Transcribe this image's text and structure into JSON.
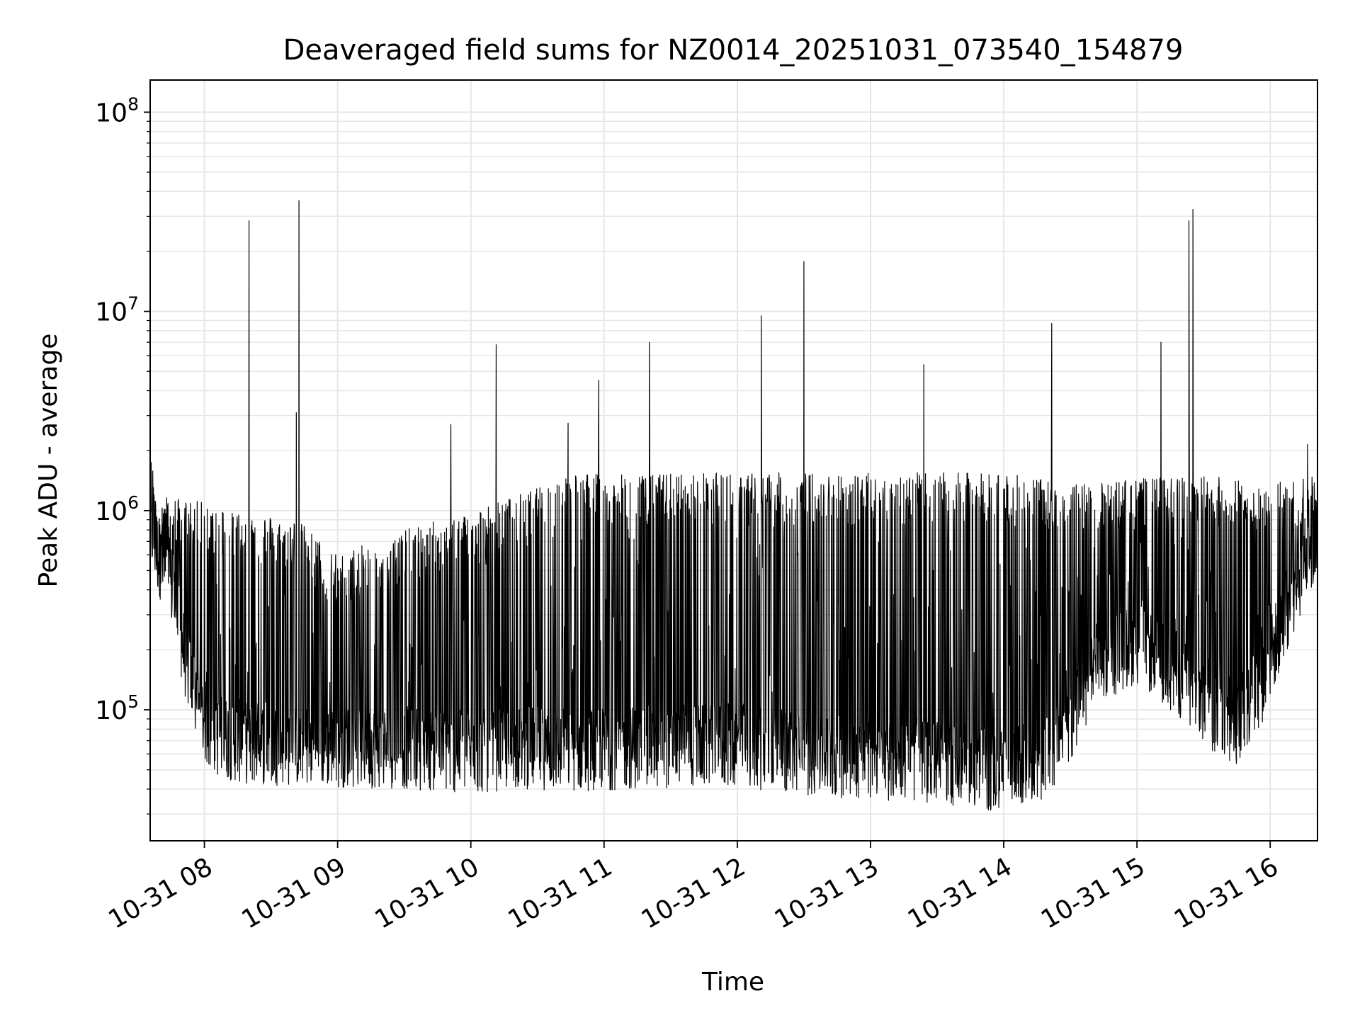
{
  "chart_data": {
    "type": "line",
    "title": "Deaveraged field sums for NZ0014_20251031_073540_154879",
    "xlabel": "Time",
    "ylabel": "Peak ADU - average",
    "yscale": "log",
    "ylim": [
      22000,
      145000000
    ],
    "xlim_hours": [
      7.593,
      16.355
    ],
    "grid": true,
    "line_color": "#000000",
    "grid_color": "#e6e6e6",
    "x_ticks": [
      {
        "hour": 8,
        "label": "10-31 08"
      },
      {
        "hour": 9,
        "label": "10-31 09"
      },
      {
        "hour": 10,
        "label": "10-31 10"
      },
      {
        "hour": 11,
        "label": "10-31 11"
      },
      {
        "hour": 12,
        "label": "10-31 12"
      },
      {
        "hour": 13,
        "label": "10-31 13"
      },
      {
        "hour": 14,
        "label": "10-31 14"
      },
      {
        "hour": 15,
        "label": "10-31 15"
      },
      {
        "hour": 16,
        "label": "10-31 16"
      }
    ],
    "y_ticks": [
      {
        "value": 100000,
        "base": "10",
        "exp": "5"
      },
      {
        "value": 1000000,
        "base": "10",
        "exp": "6"
      },
      {
        "value": 10000000,
        "base": "10",
        "exp": "7"
      },
      {
        "value": 100000000,
        "base": "10",
        "exp": "8"
      }
    ],
    "series": [
      {
        "name": "Peak ADU - average",
        "baseline_profile": [
          [
            7.593,
            900000
          ],
          [
            7.65,
            650000
          ],
          [
            7.75,
            450000
          ],
          [
            7.85,
            200000
          ],
          [
            7.95,
            110000
          ],
          [
            8.05,
            80000
          ],
          [
            8.3,
            72000
          ],
          [
            8.8,
            70000
          ],
          [
            9.5,
            68000
          ],
          [
            10.0,
            64000
          ],
          [
            10.4,
            68000
          ],
          [
            10.8,
            66000
          ],
          [
            11.2,
            68000
          ],
          [
            12.0,
            70000
          ],
          [
            12.6,
            62000
          ],
          [
            13.0,
            60000
          ],
          [
            13.5,
            58000
          ],
          [
            13.9,
            52000
          ],
          [
            14.3,
            58000
          ],
          [
            14.5,
            90000
          ],
          [
            14.7,
            180000
          ],
          [
            15.0,
            230000
          ],
          [
            15.3,
            160000
          ],
          [
            15.5,
            110000
          ],
          [
            15.75,
            90000
          ],
          [
            15.95,
            150000
          ],
          [
            16.1,
            300000
          ],
          [
            16.25,
            550000
          ],
          [
            16.355,
            750000
          ]
        ],
        "upper_envelope": [
          [
            7.593,
            1900000
          ],
          [
            7.7,
            1200000
          ],
          [
            8.0,
            1100000
          ],
          [
            8.3,
            1000000
          ],
          [
            8.7,
            900000
          ],
          [
            9.0,
            600000
          ],
          [
            9.5,
            800000
          ],
          [
            10.0,
            1000000
          ],
          [
            10.5,
            1300000
          ],
          [
            10.8,
            1600000
          ],
          [
            11.0,
            1500000
          ],
          [
            11.5,
            1550000
          ],
          [
            12.0,
            1550000
          ],
          [
            13.0,
            1550000
          ],
          [
            14.0,
            1550000
          ],
          [
            14.5,
            1350000
          ],
          [
            15.0,
            1450000
          ],
          [
            15.5,
            1500000
          ],
          [
            16.0,
            1400000
          ],
          [
            16.355,
            1500000
          ]
        ],
        "spikes": [
          {
            "hour": 8.335,
            "value": 28500000
          },
          {
            "hour": 8.71,
            "value": 36000000
          },
          {
            "hour": 8.69,
            "value": 3100000
          },
          {
            "hour": 9.85,
            "value": 2700000
          },
          {
            "hour": 10.19,
            "value": 6800000
          },
          {
            "hour": 10.73,
            "value": 2750000
          },
          {
            "hour": 10.96,
            "value": 4500000
          },
          {
            "hour": 11.34,
            "value": 7000000
          },
          {
            "hour": 12.18,
            "value": 9500000
          },
          {
            "hour": 12.5,
            "value": 17800000
          },
          {
            "hour": 13.4,
            "value": 5400000
          },
          {
            "hour": 14.36,
            "value": 8700000
          },
          {
            "hour": 15.18,
            "value": 7000000
          },
          {
            "hour": 15.39,
            "value": 28500000
          },
          {
            "hour": 15.42,
            "value": 32500000
          },
          {
            "hour": 16.28,
            "value": 2150000
          }
        ]
      }
    ]
  }
}
